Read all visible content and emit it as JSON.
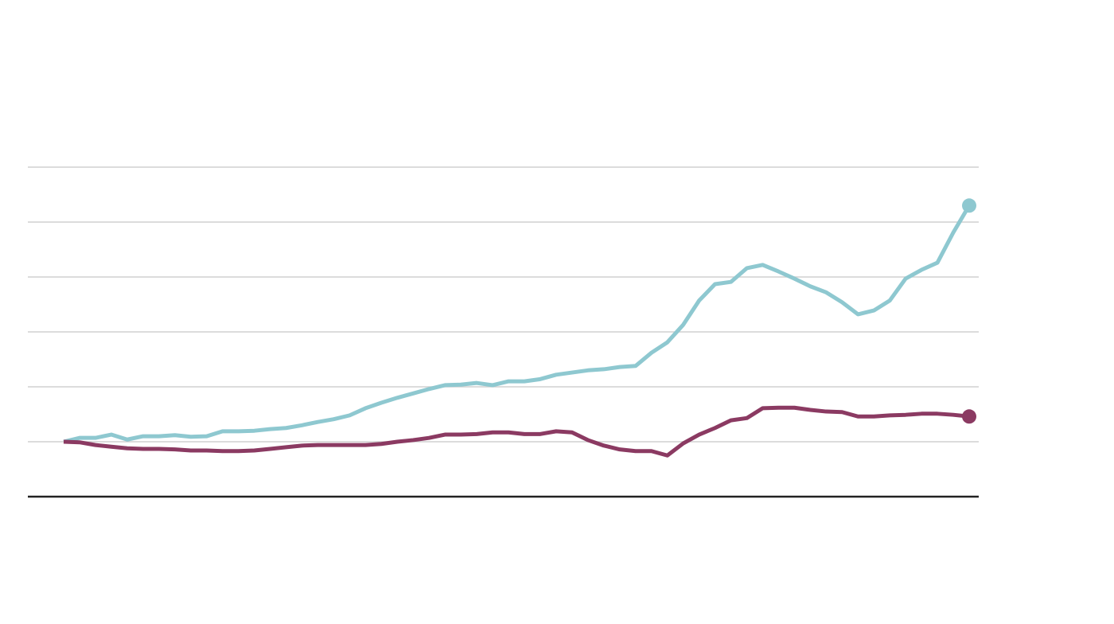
{
  "chart_data": {
    "type": "line",
    "x": [
      0,
      1,
      2,
      3,
      4,
      5,
      6,
      7,
      8,
      9,
      10,
      11,
      12,
      13,
      14,
      15,
      16,
      17,
      18,
      19,
      20,
      21,
      22,
      23,
      24,
      25,
      26,
      27,
      28,
      29,
      30,
      31,
      32,
      33,
      34,
      35,
      36,
      37,
      38,
      39,
      40,
      41,
      42,
      43,
      44,
      45,
      46,
      47,
      48,
      49,
      50,
      51,
      52,
      53,
      54,
      55,
      56,
      57
    ],
    "xlim": [
      0,
      57
    ],
    "ylim": [
      0,
      6
    ],
    "yticks": [
      1,
      2,
      3,
      4,
      5,
      6
    ],
    "grid": true,
    "end_markers": true,
    "series": [
      {
        "color": "#8ec8d0",
        "values": [
          1.0,
          1.07,
          1.07,
          1.13,
          1.04,
          1.1,
          1.1,
          1.12,
          1.09,
          1.1,
          1.19,
          1.19,
          1.2,
          1.23,
          1.25,
          1.3,
          1.36,
          1.41,
          1.48,
          1.61,
          1.71,
          1.8,
          1.88,
          1.96,
          2.03,
          2.04,
          2.07,
          2.03,
          2.1,
          2.1,
          2.14,
          2.22,
          2.26,
          2.3,
          2.32,
          2.36,
          2.38,
          2.62,
          2.81,
          3.13,
          3.57,
          3.87,
          3.91,
          4.16,
          4.22,
          4.1,
          3.97,
          3.83,
          3.72,
          3.54,
          3.32,
          3.39,
          3.57,
          3.97,
          4.13,
          4.26,
          4.81,
          5.3
        ]
      },
      {
        "color": "#8b3a62",
        "values": [
          1.0,
          0.99,
          0.94,
          0.91,
          0.88,
          0.87,
          0.87,
          0.86,
          0.84,
          0.84,
          0.83,
          0.83,
          0.84,
          0.87,
          0.9,
          0.93,
          0.94,
          0.94,
          0.94,
          0.94,
          0.96,
          1.0,
          1.03,
          1.07,
          1.13,
          1.13,
          1.14,
          1.17,
          1.17,
          1.14,
          1.14,
          1.19,
          1.17,
          1.03,
          0.93,
          0.86,
          0.83,
          0.83,
          0.75,
          0.97,
          1.13,
          1.25,
          1.39,
          1.43,
          1.61,
          1.62,
          1.62,
          1.58,
          1.55,
          1.54,
          1.46,
          1.46,
          1.48,
          1.49,
          1.51,
          1.51,
          1.49,
          1.46
        ]
      }
    ]
  }
}
